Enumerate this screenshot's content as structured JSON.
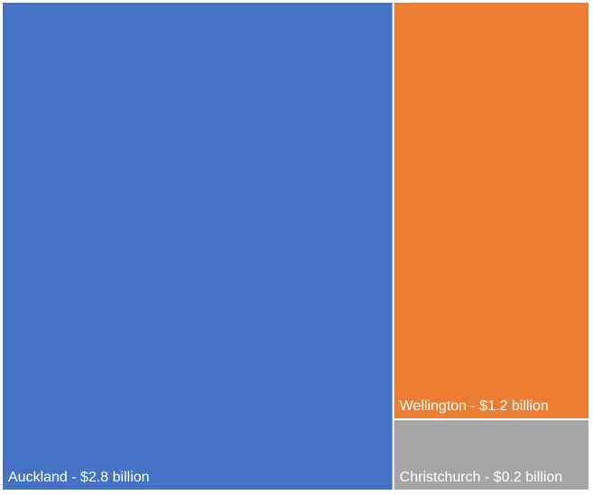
{
  "chart_data": {
    "type": "treemap",
    "categories": [
      "Auckland",
      "Wellington",
      "Christchurch"
    ],
    "values": [
      2.8,
      1.2,
      0.2
    ],
    "unit": "billion",
    "labels": [
      "Auckland - $2.8 billion",
      "Wellington - $1.2 billion",
      "Christchurch - $0.2 billion"
    ],
    "colors": [
      "#4472C4",
      "#ED7D31",
      "#A5A5A5"
    ],
    "title": "",
    "legend": "none"
  }
}
